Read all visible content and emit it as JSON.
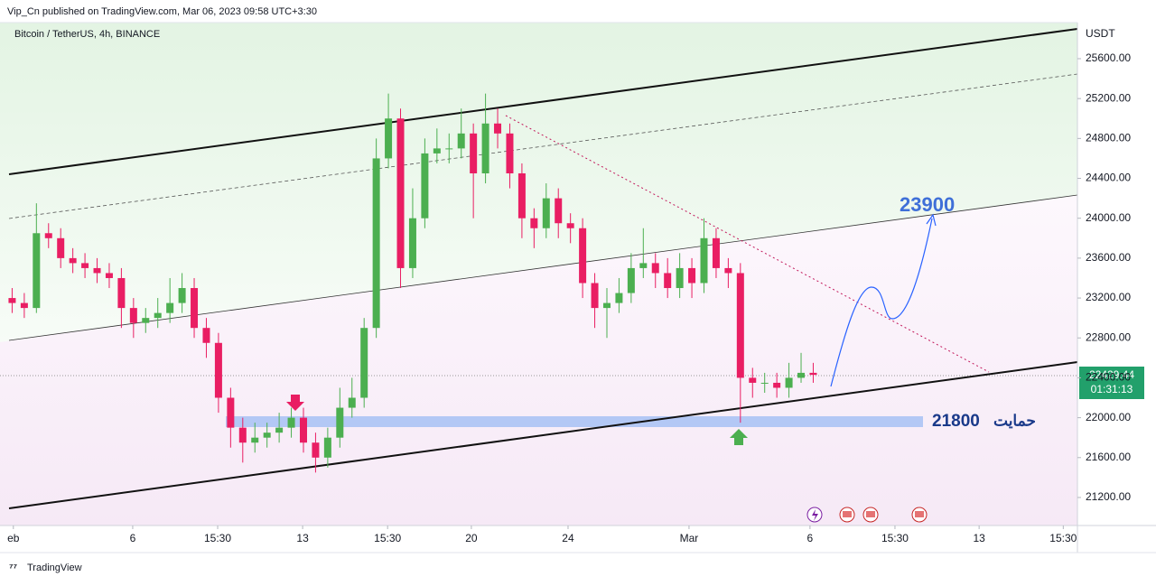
{
  "header": {
    "publisher": "Vip_Cn published on TradingView.com, Mar 06, 2023 09:58 UTC+3:30",
    "footer": "TradingView"
  },
  "chart_data": {
    "type": "candlestick",
    "title": "Bitcoin / TetherUS, 4h, BINANCE",
    "y_axis_label": "USDT",
    "up_color": "#4caf50",
    "down_color": "#e91e63",
    "x": [
      3,
      6,
      9,
      12,
      15,
      18,
      21,
      24,
      27,
      30,
      33,
      36,
      39,
      42,
      45,
      48,
      51,
      54,
      57,
      60,
      63,
      66,
      69,
      72,
      75,
      78,
      81,
      84,
      87,
      90,
      93,
      96,
      99,
      102,
      105,
      108,
      111,
      114,
      117,
      120,
      123,
      126,
      129,
      132,
      135,
      138,
      141,
      144,
      147,
      150,
      153,
      156,
      159,
      162,
      165,
      168,
      171,
      174,
      177,
      180,
      183,
      186,
      189,
      192,
      195,
      198,
      201
    ],
    "open": [
      23200,
      23150,
      23100,
      23850,
      23800,
      23600,
      23550,
      23500,
      23450,
      23400,
      23100,
      22950,
      23000,
      23050,
      23150,
      23300,
      22900,
      22750,
      22200,
      21900,
      21750,
      21800,
      21850,
      21900,
      22000,
      21750,
      21600,
      21800,
      22100,
      22200,
      22900,
      24600,
      25000,
      23500,
      24000,
      24650,
      24700,
      24700,
      24850,
      24450,
      24950,
      24850,
      24450,
      24000,
      23900,
      24200,
      23950,
      23900,
      23350,
      23100,
      23150,
      23250,
      23500,
      23550,
      23450,
      23300,
      23500,
      23350,
      23800,
      23500,
      23450,
      22400,
      22350,
      22350,
      22300,
      22400,
      22450
    ],
    "high": [
      23300,
      23250,
      24150,
      23950,
      23900,
      23700,
      23650,
      23600,
      23550,
      23500,
      23200,
      23100,
      23200,
      23400,
      23450,
      23400,
      23000,
      22850,
      22300,
      22000,
      21950,
      21950,
      22050,
      22100,
      22100,
      21850,
      21900,
      22300,
      22400,
      23000,
      24800,
      25250,
      25100,
      24300,
      24800,
      24900,
      24850,
      25100,
      24950,
      25250,
      25100,
      24950,
      24550,
      24100,
      24350,
      24300,
      24050,
      24000,
      23450,
      23300,
      23400,
      23650,
      23900,
      23650,
      23600,
      23650,
      23600,
      24000,
      23900,
      23600,
      23550,
      22500,
      22450,
      22450,
      22550,
      22650,
      22550
    ],
    "low": [
      23050,
      23000,
      23050,
      23700,
      23500,
      23450,
      23400,
      23350,
      23300,
      22900,
      22800,
      22850,
      22900,
      22950,
      23050,
      22800,
      22600,
      22050,
      21700,
      21550,
      21650,
      21700,
      21750,
      21800,
      21650,
      21450,
      21500,
      21700,
      22000,
      22100,
      22800,
      24500,
      23300,
      23400,
      23900,
      24550,
      24550,
      24600,
      24000,
      24350,
      24700,
      24300,
      23800,
      23700,
      23800,
      23800,
      23750,
      23200,
      22900,
      22800,
      23050,
      23150,
      23400,
      23300,
      23200,
      23200,
      23200,
      23250,
      23400,
      23300,
      21950,
      22200,
      22250,
      22200,
      22200,
      22350,
      22350
    ],
    "close": [
      23150,
      23100,
      23850,
      23800,
      23600,
      23550,
      23500,
      23450,
      23400,
      23100,
      22950,
      23000,
      23050,
      23150,
      23300,
      22900,
      22750,
      22200,
      21900,
      21750,
      21800,
      21850,
      21900,
      22000,
      21750,
      21600,
      21800,
      22100,
      22200,
      22900,
      24600,
      25000,
      23500,
      24000,
      24650,
      24700,
      24700,
      24850,
      24450,
      24950,
      24850,
      24450,
      24000,
      23900,
      24200,
      23950,
      23900,
      23350,
      23100,
      23150,
      23250,
      23500,
      23550,
      23450,
      23300,
      23500,
      23350,
      23800,
      23500,
      23450,
      22400,
      22350,
      22350,
      22300,
      22400,
      22450,
      22429.44
    ],
    "xlim": [
      0,
      266.3
    ],
    "xticks": [
      {
        "value": 3.3,
        "label": "eb"
      },
      {
        "value": 32.8,
        "label": "6"
      },
      {
        "value": 53.8,
        "label": "15:30"
      },
      {
        "value": 74.8,
        "label": "13"
      },
      {
        "value": 95.8,
        "label": "15:30"
      },
      {
        "value": 116.5,
        "label": "20"
      },
      {
        "value": 140.4,
        "label": "24"
      },
      {
        "value": 170.3,
        "label": "Mar"
      },
      {
        "value": 200.2,
        "label": "6"
      },
      {
        "value": 221.2,
        "label": "15:30"
      },
      {
        "value": 242,
        "label": "13"
      },
      {
        "value": 262.8,
        "label": "15:30"
      }
    ],
    "ylim": [
      20919,
      25962
    ],
    "yticks": [
      {
        "value": 21200,
        "label": "21200.00"
      },
      {
        "value": 21600,
        "label": "21600.00"
      },
      {
        "value": 22000,
        "label": "22000.00"
      },
      {
        "value": 22400,
        "label": "22400.00"
      },
      {
        "value": 22800,
        "label": "22800.00"
      },
      {
        "value": 23200,
        "label": "23200.00"
      },
      {
        "value": 23600,
        "label": "23600.00"
      },
      {
        "value": 24000,
        "label": "24000.00"
      },
      {
        "value": 24400,
        "label": "24400.00"
      },
      {
        "value": 24800,
        "label": "24800.00"
      },
      {
        "value": 25200,
        "label": "25200.00"
      },
      {
        "value": 25600,
        "label": "25600.00"
      }
    ],
    "countdown": "01:31:13",
    "annotations": {
      "target": "23900",
      "support_label": "حمایت",
      "support_value": "21800"
    }
  }
}
